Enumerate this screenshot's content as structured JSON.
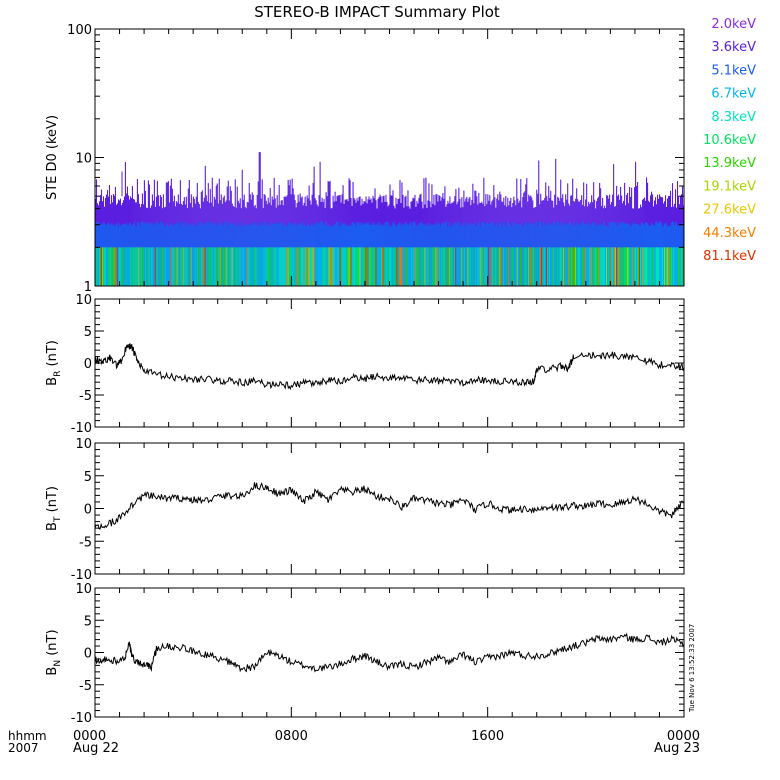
{
  "title": "STEREO-B IMPACT Summary Plot",
  "timestamp": "Tue Nov  6 13:52:33 2007",
  "time_axis": {
    "format_label": "hhmm",
    "year_label": "2007",
    "ticks": [
      {
        "hour": 0,
        "label": "0000",
        "date": "Aug 22"
      },
      {
        "hour": 8,
        "label": "0800",
        "date": ""
      },
      {
        "hour": 16,
        "label": "1600",
        "date": ""
      },
      {
        "hour": 24,
        "label": "0000",
        "date": "Aug 23"
      }
    ]
  },
  "legend": {
    "entries": [
      {
        "label": "2.0keV",
        "color": "#8a2be2"
      },
      {
        "label": "3.6keV",
        "color": "#5a1fe0"
      },
      {
        "label": "5.1keV",
        "color": "#1c5cf0"
      },
      {
        "label": "6.7keV",
        "color": "#00b8e8"
      },
      {
        "label": "8.3keV",
        "color": "#00e0c0"
      },
      {
        "label": "10.6keV",
        "color": "#00e060"
      },
      {
        "label": "13.9keV",
        "color": "#30d000"
      },
      {
        "label": "19.1keV",
        "color": "#a8d800"
      },
      {
        "label": "27.6keV",
        "color": "#e8c800"
      },
      {
        "label": "44.3keV",
        "color": "#f08000"
      },
      {
        "label": "81.1keV",
        "color": "#e03000"
      }
    ]
  },
  "chart_data": [
    {
      "type": "area",
      "ylabel": "STE D0 (keV)",
      "yscale": "log",
      "ylim": [
        1,
        100
      ],
      "xlim": [
        0,
        24
      ],
      "x_units": "hours since 0000 Aug 22 2007",
      "yticks": [
        {
          "value": 1,
          "label": "1"
        },
        {
          "value": 10,
          "label": "10"
        },
        {
          "value": 100,
          "label": "100"
        }
      ],
      "description": "Spectrogram of STE D0 electron energy channels vs time; colored vertical lines mostly below ~7 keV",
      "typical_upper_keV": 5,
      "peak_keV": 11,
      "peak_hour": 6.7
    },
    {
      "type": "line",
      "ylabel_main": "B",
      "ylabel_sub": "R",
      "ylabel_unit": " (nT)",
      "ylim": [
        -10,
        10
      ],
      "xlim": [
        0,
        24
      ],
      "yticks": [
        -10,
        -5,
        0,
        5,
        10
      ],
      "series": [
        {
          "x": [
            0,
            0.3,
            0.6,
            0.9,
            1.1,
            1.3,
            1.5,
            1.7,
            2.0,
            2.5,
            3.0,
            3.5,
            4.0,
            4.5,
            5.0,
            5.5,
            6.0,
            6.5,
            7.0,
            7.5,
            8.0,
            8.5,
            9.0,
            9.5,
            10.0,
            10.5,
            11.0,
            11.5,
            12.0,
            12.5,
            13.0,
            13.5,
            14.0,
            14.5,
            15.0,
            15.5,
            16.0,
            16.5,
            17.0,
            17.5,
            17.9,
            18.0,
            18.5,
            19.0,
            19.3,
            19.5,
            20.0,
            20.5,
            21.0,
            21.5,
            22.0,
            22.5,
            23.0,
            23.5,
            24.0
          ],
          "y": [
            0.5,
            0.3,
            0.8,
            -0.5,
            0.5,
            2.8,
            2.5,
            0.5,
            -1.2,
            -1.8,
            -2.2,
            -2.3,
            -2.6,
            -2.4,
            -2.9,
            -2.7,
            -3.1,
            -2.8,
            -3.4,
            -3.2,
            -3.6,
            -3.1,
            -3.3,
            -2.7,
            -2.9,
            -2.3,
            -2.5,
            -2.0,
            -2.4,
            -2.2,
            -2.8,
            -2.6,
            -2.9,
            -2.7,
            -3.0,
            -2.6,
            -2.8,
            -2.9,
            -2.9,
            -3.0,
            -2.9,
            -0.8,
            -1.0,
            -0.5,
            -0.8,
            1.0,
            1.4,
            1.0,
            1.3,
            0.9,
            1.2,
            0.3,
            -0.3,
            -0.3,
            -0.7
          ]
        }
      ]
    },
    {
      "type": "line",
      "ylabel_main": "B",
      "ylabel_sub": "T",
      "ylabel_unit": " (nT)",
      "ylim": [
        -10,
        10
      ],
      "xlim": [
        0,
        24
      ],
      "yticks": [
        -10,
        -5,
        0,
        5,
        10
      ],
      "series": [
        {
          "x": [
            0,
            0.5,
            1.0,
            1.5,
            2.0,
            2.5,
            3.0,
            3.5,
            4.0,
            4.5,
            5.0,
            5.5,
            6.0,
            6.5,
            7.0,
            7.5,
            8.0,
            8.5,
            9.0,
            9.5,
            10.0,
            10.5,
            11.0,
            11.5,
            12.0,
            12.5,
            13.0,
            13.5,
            14.0,
            14.5,
            15.0,
            15.5,
            16.0,
            16.5,
            17.0,
            17.5,
            18.0,
            18.5,
            19.0,
            19.5,
            20.0,
            20.5,
            21.0,
            21.5,
            22.0,
            22.5,
            23.0,
            23.5,
            24.0
          ],
          "y": [
            -3.0,
            -2.5,
            -1.5,
            0.5,
            2.0,
            1.8,
            1.5,
            1.6,
            1.3,
            1.2,
            1.8,
            2.0,
            1.8,
            3.5,
            3.2,
            2.2,
            2.8,
            1.0,
            2.5,
            1.3,
            2.8,
            2.5,
            3.0,
            1.8,
            1.5,
            0.2,
            1.5,
            1.2,
            0.8,
            0.5,
            1.4,
            -0.2,
            0.8,
            0.0,
            -0.3,
            0.0,
            -0.2,
            0.3,
            0.1,
            0.5,
            0.3,
            0.8,
            0.5,
            0.9,
            1.5,
            0.7,
            -0.5,
            -1.0,
            1.0
          ]
        }
      ]
    },
    {
      "type": "line",
      "ylabel_main": "B",
      "ylabel_sub": "N",
      "ylabel_unit": " (nT)",
      "ylim": [
        -10,
        10
      ],
      "xlim": [
        0,
        24
      ],
      "yticks": [
        -10,
        -5,
        0,
        5,
        10
      ],
      "series": [
        {
          "x": [
            0,
            0.4,
            0.8,
            1.2,
            1.4,
            1.5,
            1.7,
            2.0,
            2.3,
            2.5,
            3.0,
            3.5,
            4.0,
            4.5,
            5.0,
            5.5,
            6.0,
            6.5,
            7.0,
            7.5,
            8.0,
            8.5,
            9.0,
            9.5,
            10.0,
            10.5,
            11.0,
            11.5,
            12.0,
            12.5,
            13.0,
            13.5,
            14.0,
            14.5,
            15.0,
            15.5,
            16.0,
            16.5,
            17.0,
            17.5,
            18.0,
            18.5,
            19.0,
            19.5,
            20.0,
            20.5,
            21.0,
            21.5,
            22.0,
            22.5,
            23.0,
            23.5,
            24.0
          ],
          "y": [
            -1.2,
            -1.0,
            -1.3,
            -1.0,
            1.5,
            -0.5,
            -1.5,
            -1.8,
            -2.3,
            0.5,
            1.0,
            0.8,
            0.2,
            -0.3,
            -0.8,
            -1.5,
            -2.5,
            -2.2,
            0.0,
            -0.5,
            -1.5,
            -2.0,
            -2.5,
            -2.3,
            -1.8,
            -1.0,
            -0.5,
            -1.5,
            -2.3,
            -1.8,
            -2.3,
            -1.5,
            -0.8,
            -1.5,
            -0.3,
            -1.5,
            -0.8,
            -0.5,
            0.0,
            -0.5,
            -0.5,
            -0.2,
            0.5,
            1.0,
            1.5,
            2.2,
            2.0,
            2.5,
            2.0,
            2.3,
            1.5,
            2.0,
            1.3
          ]
        }
      ]
    }
  ]
}
